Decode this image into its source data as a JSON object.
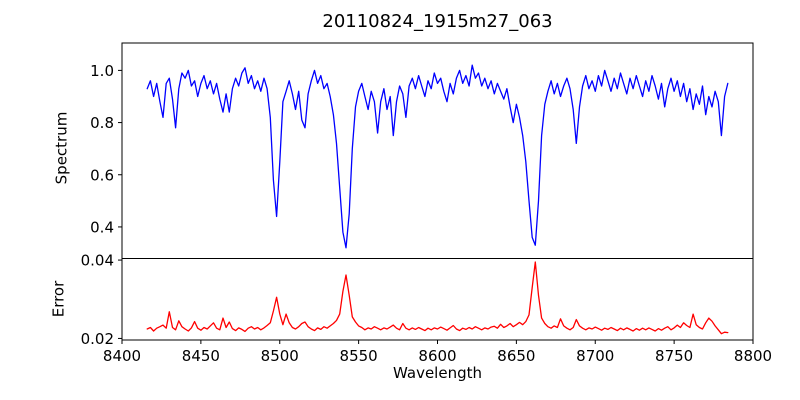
{
  "title": "20110824_1915m27_063",
  "colors": {
    "spectrum_line": "#0000ff",
    "error_line": "#ff0000",
    "axis": "#000000",
    "background": "#ffffff"
  },
  "chart_data": [
    {
      "type": "line",
      "panel": "spectrum",
      "ylabel": "Spectrum",
      "xlim": [
        8400,
        8800
      ],
      "ylim": [
        0.279,
        1.105
      ],
      "grid": false,
      "legend": "none",
      "y_ticks": [
        0.4,
        0.6,
        0.8,
        1.0
      ],
      "y_tick_labels": [
        "0.4",
        "0.6",
        "0.8",
        "1.0"
      ],
      "x_ticks": [],
      "x_tick_labels": [],
      "features": "deep absorption lines near 8498, 8542, 8662 and weaker line near 8688; noisy continuum around 0.95",
      "series": [
        {
          "name": "spectrum",
          "color": "#0000ff",
          "x_start": 8416,
          "x_step": 2,
          "values": [
            0.93,
            0.96,
            0.9,
            0.95,
            0.88,
            0.82,
            0.95,
            0.97,
            0.89,
            0.78,
            0.93,
            0.99,
            0.97,
            1.0,
            0.94,
            0.96,
            0.9,
            0.95,
            0.98,
            0.93,
            0.96,
            0.91,
            0.95,
            0.89,
            0.84,
            0.91,
            0.84,
            0.93,
            0.97,
            0.94,
            0.99,
            1.01,
            0.95,
            0.98,
            0.93,
            0.96,
            0.92,
            0.97,
            0.93,
            0.82,
            0.58,
            0.44,
            0.65,
            0.88,
            0.92,
            0.96,
            0.91,
            0.85,
            0.92,
            0.81,
            0.78,
            0.91,
            0.96,
            1.0,
            0.95,
            0.98,
            0.93,
            0.95,
            0.9,
            0.83,
            0.72,
            0.55,
            0.38,
            0.32,
            0.45,
            0.7,
            0.86,
            0.92,
            0.95,
            0.9,
            0.85,
            0.92,
            0.88,
            0.76,
            0.88,
            0.93,
            0.85,
            0.9,
            0.75,
            0.88,
            0.94,
            0.91,
            0.82,
            0.94,
            0.97,
            0.93,
            0.98,
            0.94,
            0.9,
            0.96,
            0.93,
            0.99,
            0.95,
            0.97,
            0.92,
            0.88,
            0.95,
            0.91,
            0.97,
            1.0,
            0.95,
            0.98,
            0.94,
            1.02,
            0.97,
            0.99,
            0.94,
            0.97,
            0.93,
            0.96,
            0.91,
            0.95,
            0.92,
            0.89,
            0.93,
            0.86,
            0.8,
            0.87,
            0.82,
            0.75,
            0.65,
            0.5,
            0.36,
            0.33,
            0.5,
            0.75,
            0.87,
            0.92,
            0.96,
            0.91,
            0.95,
            0.9,
            0.94,
            0.97,
            0.93,
            0.85,
            0.72,
            0.86,
            0.94,
            0.98,
            0.93,
            0.96,
            0.92,
            0.98,
            0.94,
            1.0,
            0.96,
            0.92,
            0.97,
            0.93,
            0.99,
            0.95,
            0.91,
            0.97,
            0.93,
            0.98,
            0.94,
            0.9,
            0.96,
            0.92,
            0.98,
            0.94,
            0.89,
            0.95,
            0.86,
            0.93,
            0.97,
            0.92,
            0.96,
            0.9,
            0.95,
            0.88,
            0.93,
            0.85,
            0.91,
            0.87,
            0.94,
            0.83,
            0.9,
            0.86,
            0.92,
            0.88,
            0.75,
            0.9,
            0.95
          ]
        }
      ]
    },
    {
      "type": "line",
      "panel": "error",
      "ylabel": "Error",
      "xlabel": "Wavelength",
      "xlim": [
        8400,
        8800
      ],
      "ylim": [
        0.0196,
        0.0404
      ],
      "grid": false,
      "legend": "none",
      "y_ticks": [
        0.02,
        0.04
      ],
      "y_tick_labels": [
        "0.02",
        "0.04"
      ],
      "x_ticks": [
        8400,
        8450,
        8500,
        8550,
        8600,
        8650,
        8700,
        8750,
        8800
      ],
      "x_tick_labels": [
        "8400",
        "8450",
        "8500",
        "8550",
        "8600",
        "8650",
        "8700",
        "8750",
        "8800"
      ],
      "features": "baseline near 0.0225 with error peaks at 8498 (0.0305), 8542 (0.0362), 8662 (0.0395)",
      "series": [
        {
          "name": "error",
          "color": "#ff0000",
          "x_start": 8416,
          "x_step": 2,
          "values": [
            0.0224,
            0.0228,
            0.0219,
            0.0226,
            0.023,
            0.0234,
            0.0226,
            0.0268,
            0.0228,
            0.0222,
            0.0245,
            0.023,
            0.0224,
            0.0219,
            0.0227,
            0.0243,
            0.0226,
            0.0221,
            0.0228,
            0.0224,
            0.0232,
            0.024,
            0.0226,
            0.0222,
            0.0252,
            0.0228,
            0.0242,
            0.0225,
            0.022,
            0.0227,
            0.0223,
            0.0218,
            0.0226,
            0.023,
            0.0224,
            0.0228,
            0.0222,
            0.0227,
            0.0233,
            0.024,
            0.027,
            0.0305,
            0.0262,
            0.0235,
            0.0262,
            0.024,
            0.0228,
            0.0224,
            0.023,
            0.0238,
            0.0242,
            0.023,
            0.0224,
            0.022,
            0.0227,
            0.0223,
            0.023,
            0.0226,
            0.0232,
            0.0238,
            0.0246,
            0.0262,
            0.032,
            0.0362,
            0.031,
            0.0255,
            0.0242,
            0.0232,
            0.0228,
            0.0222,
            0.0227,
            0.0224,
            0.023,
            0.0226,
            0.0222,
            0.0227,
            0.0224,
            0.0229,
            0.0234,
            0.0226,
            0.0222,
            0.0238,
            0.0226,
            0.0222,
            0.0227,
            0.0223,
            0.0228,
            0.0224,
            0.022,
            0.0226,
            0.0222,
            0.0227,
            0.0224,
            0.0229,
            0.0225,
            0.0221,
            0.0227,
            0.0233,
            0.0224,
            0.022,
            0.0226,
            0.0223,
            0.0228,
            0.0224,
            0.023,
            0.0226,
            0.0222,
            0.0227,
            0.0224,
            0.0229,
            0.0231,
            0.0226,
            0.0236,
            0.0228,
            0.0232,
            0.0238,
            0.023,
            0.0235,
            0.0241,
            0.0235,
            0.0243,
            0.026,
            0.033,
            0.0395,
            0.031,
            0.0252,
            0.0238,
            0.023,
            0.0226,
            0.0232,
            0.0228,
            0.025,
            0.0232,
            0.0226,
            0.0222,
            0.0228,
            0.0248,
            0.0232,
            0.0226,
            0.0222,
            0.0227,
            0.0224,
            0.0229,
            0.0225,
            0.0221,
            0.0226,
            0.0223,
            0.0228,
            0.0224,
            0.022,
            0.0226,
            0.0222,
            0.0227,
            0.0223,
            0.0219,
            0.0225,
            0.0221,
            0.0226,
            0.0222,
            0.0227,
            0.0223,
            0.0219,
            0.0225,
            0.0221,
            0.0226,
            0.023,
            0.0222,
            0.0227,
            0.0234,
            0.0228,
            0.024,
            0.0233,
            0.0228,
            0.0262,
            0.0235,
            0.0228,
            0.0224,
            0.024,
            0.0252,
            0.0244,
            0.0232,
            0.0222,
            0.0212,
            0.0216,
            0.0215
          ]
        }
      ]
    }
  ]
}
